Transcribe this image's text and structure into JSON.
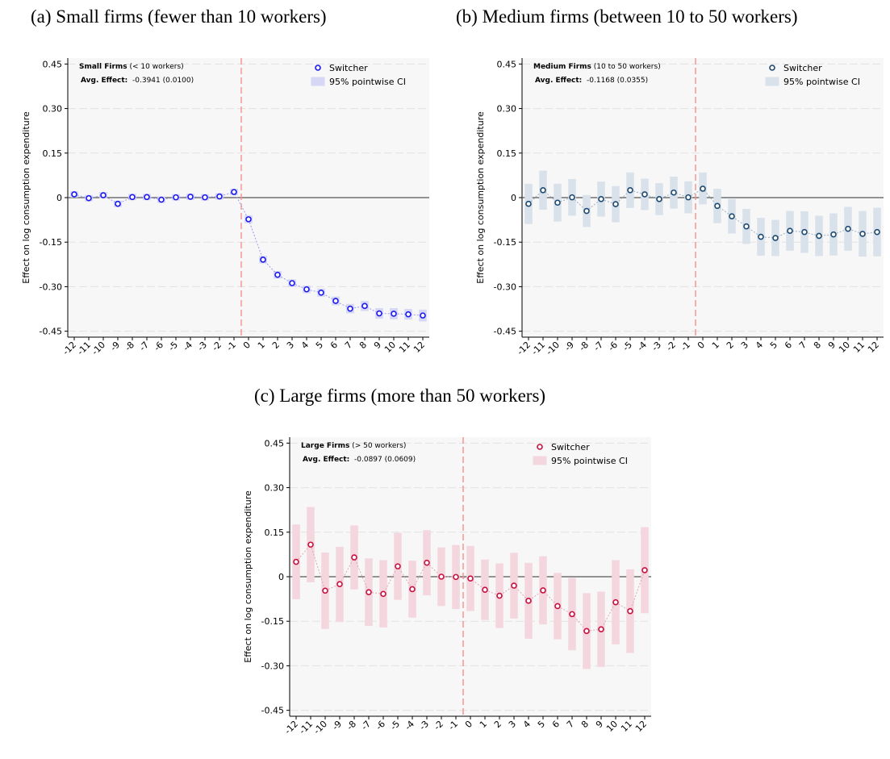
{
  "panels": [
    {
      "label": "(a) Small firms (fewer than 10 workers)"
    },
    {
      "label": "(b) Medium firms (between 10 to 50 workers)"
    },
    {
      "label": "(c) Large firms (more than 50 workers)"
    }
  ],
  "chart_data": [
    {
      "type": "scatter",
      "ylabel": "Effect on log consumption expenditure",
      "xlabel": "",
      "x": [
        "-12",
        "-11",
        "-10",
        "-9",
        "-8",
        "-7",
        "-6",
        "-5",
        "-4",
        "-3",
        "-2",
        "-1",
        "0",
        "1",
        "2",
        "3",
        "4",
        "5",
        "6",
        "7",
        "8",
        "9",
        "10",
        "11",
        "12"
      ],
      "ylim": [
        -0.47,
        0.47
      ],
      "yticks": [
        "0.45",
        "0.30",
        "0.15",
        "0",
        "-0.15",
        "-0.30",
        "-0.45"
      ],
      "event_line_x": "-0.5",
      "info_bold": "Small Firms",
      "info_rest": "(< 10 workers)",
      "avg_bold": "Avg. Effect:",
      "avg_rest": "-0.3941 (0.0100)",
      "legend_point": "Switcher",
      "legend_ci": "95% pointwise CI",
      "colors": {
        "point": "#1a1aee",
        "ci": "#d6d6f5",
        "line": "#9a9af2"
      },
      "series": [
        {
          "name": "Switcher",
          "values": [
            0.011,
            -0.002,
            0.008,
            -0.021,
            0.002,
            0.002,
            -0.007,
            0.001,
            0.003,
            0.001,
            0.004,
            0.019,
            -0.073,
            -0.209,
            -0.26,
            -0.288,
            -0.309,
            -0.32,
            -0.348,
            -0.374,
            -0.365,
            -0.39,
            -0.391,
            -0.393,
            -0.397
          ],
          "ci_low": [
            0.001,
            -0.012,
            -0.002,
            -0.031,
            -0.008,
            -0.008,
            -0.017,
            -0.009,
            -0.007,
            -0.009,
            -0.006,
            0.009,
            -0.085,
            -0.221,
            -0.272,
            -0.3,
            -0.321,
            -0.333,
            -0.362,
            -0.389,
            -0.381,
            -0.407,
            -0.409,
            -0.41,
            -0.416
          ],
          "ci_high": [
            0.021,
            0.008,
            0.018,
            -0.011,
            0.012,
            0.012,
            0.003,
            0.011,
            0.013,
            0.011,
            0.014,
            0.029,
            -0.061,
            -0.197,
            -0.248,
            -0.276,
            -0.297,
            -0.307,
            -0.334,
            -0.359,
            -0.349,
            -0.373,
            -0.373,
            -0.376,
            -0.378
          ]
        }
      ]
    },
    {
      "type": "scatter",
      "ylabel": "Effect on log consumption expenditure",
      "xlabel": "",
      "x": [
        "-12",
        "-11",
        "-10",
        "-9",
        "-8",
        "-7",
        "-6",
        "-5",
        "-4",
        "-3",
        "-2",
        "-1",
        "0",
        "1",
        "2",
        "3",
        "4",
        "5",
        "6",
        "7",
        "8",
        "9",
        "10",
        "11",
        "12"
      ],
      "ylim": [
        -0.47,
        0.47
      ],
      "yticks": [
        "0.45",
        "0.30",
        "0.15",
        "0",
        "-0.15",
        "-0.30",
        "-0.45"
      ],
      "event_line_x": "-0.5",
      "info_bold": "Medium Firms",
      "info_rest": "(10 to 50 workers)",
      "avg_bold": "Avg. Effect:",
      "avg_rest": "-0.1168 (0.0355)",
      "legend_point": "Switcher",
      "legend_ci": "95% pointwise CI",
      "colors": {
        "point": "#1d4a72",
        "ci": "#d9e1ea",
        "line": "#9ab0c6"
      },
      "series": [
        {
          "name": "Switcher",
          "values": [
            -0.021,
            0.025,
            -0.017,
            0.001,
            -0.045,
            -0.005,
            -0.022,
            0.025,
            0.011,
            -0.005,
            0.017,
            0.001,
            0.03,
            -0.028,
            -0.063,
            -0.097,
            -0.132,
            -0.136,
            -0.112,
            -0.116,
            -0.129,
            -0.124,
            -0.105,
            -0.122,
            -0.116
          ],
          "ci_low": [
            -0.088,
            -0.04,
            -0.08,
            -0.06,
            -0.098,
            -0.063,
            -0.082,
            -0.034,
            -0.041,
            -0.058,
            -0.036,
            -0.052,
            -0.022,
            -0.085,
            -0.12,
            -0.155,
            -0.195,
            -0.196,
            -0.178,
            -0.185,
            -0.196,
            -0.194,
            -0.178,
            -0.198,
            -0.197
          ],
          "ci_high": [
            0.046,
            0.09,
            0.046,
            0.062,
            0.008,
            0.053,
            0.038,
            0.084,
            0.063,
            0.048,
            0.07,
            0.054,
            0.084,
            0.029,
            -0.006,
            -0.039,
            -0.069,
            -0.076,
            -0.046,
            -0.047,
            -0.062,
            -0.054,
            -0.032,
            -0.046,
            -0.035
          ]
        }
      ]
    },
    {
      "type": "scatter",
      "ylabel": "Effect on log consumption expenditure",
      "xlabel": "",
      "x": [
        "-12",
        "-11",
        "-10",
        "-9",
        "-8",
        "-7",
        "-6",
        "-5",
        "-4",
        "-3",
        "-2",
        "-1",
        "0",
        "1",
        "2",
        "3",
        "4",
        "5",
        "6",
        "7",
        "8",
        "9",
        "10",
        "11",
        "12"
      ],
      "ylim": [
        -0.47,
        0.47
      ],
      "yticks": [
        "0.45",
        "0.30",
        "0.15",
        "0",
        "-0.15",
        "-0.30",
        "-0.45"
      ],
      "event_line_x": "-0.5",
      "info_bold": "Large Firms",
      "info_rest": "(> 50 workers)",
      "avg_bold": "Avg. Effect:",
      "avg_rest": "-0.0897 (0.0609)",
      "legend_point": "Switcher",
      "legend_ci": "95% pointwise CI",
      "colors": {
        "point": "#c8103e",
        "ci": "#f4d7de",
        "line": "#e6a3b5"
      },
      "series": [
        {
          "name": "Switcher",
          "values": [
            0.05,
            0.108,
            -0.047,
            -0.025,
            0.065,
            -0.052,
            -0.058,
            0.035,
            -0.042,
            0.047,
            0.0,
            -0.001,
            -0.006,
            -0.044,
            -0.064,
            -0.03,
            -0.081,
            -0.046,
            -0.099,
            -0.126,
            -0.183,
            -0.177,
            -0.086,
            -0.116,
            0.022
          ],
          "ci_low": [
            -0.075,
            -0.018,
            -0.175,
            -0.152,
            -0.042,
            -0.165,
            -0.17,
            -0.077,
            -0.137,
            -0.062,
            -0.098,
            -0.108,
            -0.115,
            -0.145,
            -0.172,
            -0.14,
            -0.208,
            -0.16,
            -0.21,
            -0.247,
            -0.31,
            -0.303,
            -0.227,
            -0.256,
            -0.122
          ],
          "ci_high": [
            0.175,
            0.234,
            0.081,
            0.1,
            0.172,
            0.061,
            0.055,
            0.147,
            0.053,
            0.156,
            0.098,
            0.106,
            0.103,
            0.057,
            0.044,
            0.08,
            0.046,
            0.068,
            0.012,
            -0.005,
            -0.056,
            -0.051,
            0.055,
            0.024,
            0.166
          ]
        }
      ]
    }
  ]
}
